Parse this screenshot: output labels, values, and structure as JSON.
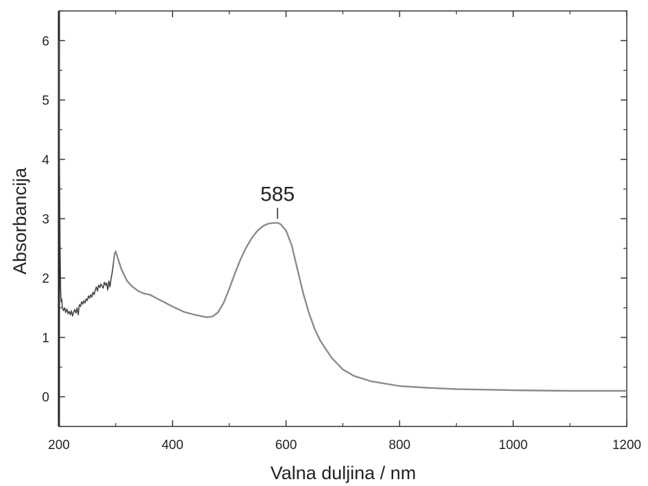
{
  "chart_data": {
    "type": "line",
    "title": "",
    "xlabel": "Valna duljina / nm",
    "ylabel": "Absorbancija",
    "xlim": [
      200,
      1200
    ],
    "ylim": [
      -0.5,
      6.5
    ],
    "x_ticks": [
      200,
      400,
      600,
      800,
      1000,
      1200
    ],
    "y_ticks": [
      0,
      1,
      2,
      3,
      4,
      5,
      6
    ],
    "grid": false,
    "legend": "none",
    "line_color": "#8a8a8a",
    "noise_color": "#444444",
    "annotations": [
      {
        "text": "585",
        "x": 585,
        "y": 2.93
      }
    ],
    "series": [
      {
        "x": [
          200,
          201,
          202,
          203,
          204,
          205,
          206,
          208,
          210,
          212,
          214,
          216,
          218,
          220,
          222,
          224,
          226,
          228,
          230,
          232,
          234,
          236,
          238,
          240,
          242,
          244,
          246,
          248,
          250,
          252,
          254,
          256,
          258,
          260,
          262,
          264,
          266,
          268,
          270,
          272,
          274,
          276,
          278,
          280,
          282,
          284,
          286,
          288,
          290,
          292,
          294,
          296,
          298,
          300,
          305,
          310,
          320,
          330,
          340,
          350,
          360,
          370,
          380,
          400,
          420,
          440,
          460,
          470,
          480,
          490,
          500,
          510,
          520,
          530,
          540,
          550,
          560,
          570,
          580,
          585,
          590,
          600,
          610,
          620,
          630,
          640,
          650,
          660,
          680,
          700,
          720,
          750,
          800,
          850,
          900,
          1000,
          1100,
          1200
        ],
        "y": [
          6.0,
          4.0,
          2.5,
          1.8,
          1.6,
          1.65,
          1.5,
          1.45,
          1.5,
          1.42,
          1.48,
          1.4,
          1.44,
          1.38,
          1.45,
          1.36,
          1.43,
          1.47,
          1.41,
          1.5,
          1.38,
          1.55,
          1.52,
          1.6,
          1.56,
          1.62,
          1.58,
          1.65,
          1.62,
          1.7,
          1.66,
          1.72,
          1.68,
          1.76,
          1.72,
          1.8,
          1.85,
          1.78,
          1.88,
          1.84,
          1.9,
          1.86,
          1.83,
          1.93,
          1.88,
          1.92,
          1.8,
          1.95,
          1.85,
          2.0,
          2.1,
          2.25,
          2.4,
          2.45,
          2.3,
          2.15,
          1.95,
          1.85,
          1.78,
          1.74,
          1.72,
          1.67,
          1.62,
          1.52,
          1.43,
          1.38,
          1.34,
          1.35,
          1.42,
          1.58,
          1.82,
          2.08,
          2.32,
          2.52,
          2.68,
          2.8,
          2.88,
          2.92,
          2.93,
          2.93,
          2.91,
          2.8,
          2.55,
          2.15,
          1.75,
          1.42,
          1.15,
          0.95,
          0.66,
          0.46,
          0.35,
          0.26,
          0.18,
          0.15,
          0.13,
          0.11,
          0.1,
          0.1
        ]
      }
    ]
  }
}
